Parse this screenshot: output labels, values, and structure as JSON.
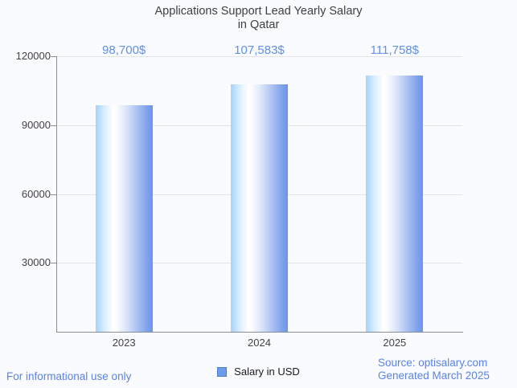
{
  "title": {
    "line1": "Applications Support Lead Yearly Salary",
    "line2": "in Qatar"
  },
  "chart_data": {
    "type": "bar",
    "title": "Applications Support Lead Yearly Salary in Qatar",
    "categories": [
      "2023",
      "2024",
      "2025"
    ],
    "series": [
      {
        "name": "Salary in USD",
        "values": [
          98700,
          107583,
          111758
        ]
      }
    ],
    "value_labels": [
      "98,700$",
      "107,583$",
      "111,758$"
    ],
    "xlabel": "",
    "ylabel": "",
    "ylim": [
      0,
      120000
    ],
    "yticks": [
      30000,
      60000,
      90000,
      120000
    ],
    "ytick_labels": [
      "30000",
      "60000",
      "90000",
      "120000"
    ],
    "grid": true,
    "legend_position": "bottom",
    "colors": {
      "bar_gradient_left": "#a5d2fc",
      "bar_gradient_mid": "#ffffff",
      "bar_gradient_right": "#6b94ea",
      "annotation_text": "#6090e4",
      "axis_line": "#8a8d91",
      "gridline": "#e3e4e6",
      "tick_text": "#424242",
      "title_text": "#3c4043",
      "background": "#fafbfe"
    }
  },
  "legend": {
    "label": "Salary in USD",
    "swatch_color": "#6d9ceb"
  },
  "footer": {
    "disclaimer": "For informational use only",
    "source": "Source: optisalary.com",
    "generated": "Generated March 2025",
    "link_color": "#5b83e3"
  }
}
